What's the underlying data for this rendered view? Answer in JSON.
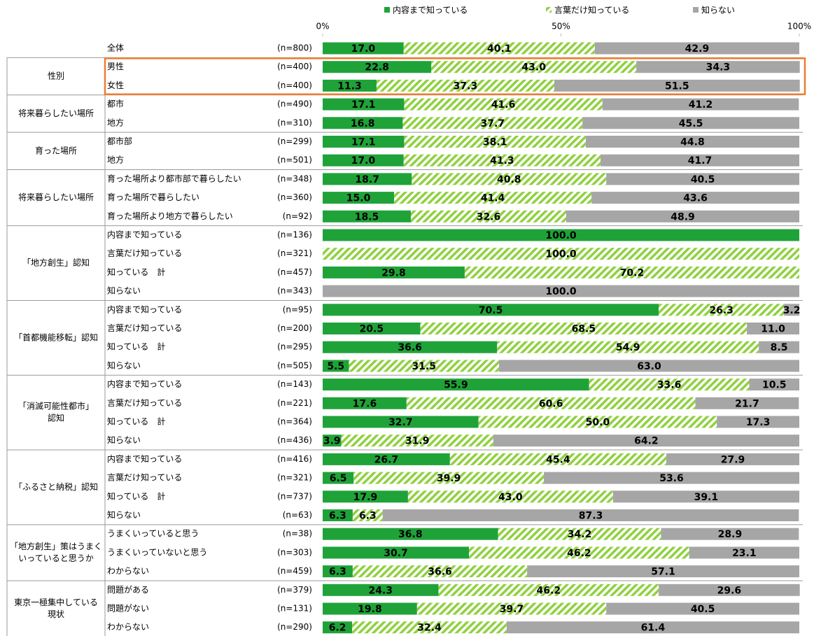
{
  "chart_data": {
    "type": "stacked-bar-horizontal",
    "legend_position": "top",
    "xlim": [
      0,
      100
    ],
    "xticks": [
      {
        "value": 0,
        "label": "0%"
      },
      {
        "value": 50,
        "label": "50%"
      },
      {
        "value": 100,
        "label": "100%"
      }
    ],
    "categories": [
      "全体",
      "男性",
      "女性",
      "都市",
      "地方",
      "都市部",
      "地方",
      "育った場所より都市部で暮らしたい",
      "育った場所で暮らしたい",
      "育った場所より地方で暮らしたい",
      "内容まで知っている",
      "言葉だけ知っている",
      "知っている　計",
      "知らない",
      "内容まで知っている",
      "言葉だけ知っている",
      "知っている　計",
      "知らない",
      "内容まで知っている",
      "言葉だけ知っている",
      "知っている　計",
      "知らない",
      "内容まで知っている",
      "言葉だけ知っている",
      "知っている　計",
      "知らない",
      "うまくいっていると思う",
      "うまくいっていないと思う",
      "わからない",
      "問題がある",
      "問題がない",
      "わからない"
    ],
    "n_labels": [
      "(n=800)",
      "(n=400)",
      "(n=400)",
      "(n=490)",
      "(n=310)",
      "(n=299)",
      "(n=501)",
      "(n=348)",
      "(n=360)",
      "(n=92)",
      "(n=136)",
      "(n=321)",
      "(n=457)",
      "(n=343)",
      "(n=95)",
      "(n=200)",
      "(n=295)",
      "(n=505)",
      "(n=143)",
      "(n=221)",
      "(n=364)",
      "(n=436)",
      "(n=416)",
      "(n=321)",
      "(n=737)",
      "(n=63)",
      "(n=38)",
      "(n=303)",
      "(n=459)",
      "(n=379)",
      "(n=131)",
      "(n=290)"
    ],
    "groups": [
      {
        "label": [
          "性別"
        ],
        "rows": [
          1,
          2
        ]
      },
      {
        "label": [
          "将来暮らしたい場所"
        ],
        "rows": [
          3,
          4
        ]
      },
      {
        "label": [
          "育った場所"
        ],
        "rows": [
          5,
          6
        ]
      },
      {
        "label": [
          "将来暮らしたい場所"
        ],
        "rows": [
          7,
          8,
          9
        ]
      },
      {
        "label": [
          "「地方創生」認知"
        ],
        "rows": [
          10,
          11,
          12,
          13
        ]
      },
      {
        "label": [
          "「首都機能移転」認知"
        ],
        "rows": [
          14,
          15,
          16,
          17
        ]
      },
      {
        "label": [
          "「消滅可能性都市」",
          "認知"
        ],
        "rows": [
          18,
          19,
          20,
          21
        ]
      },
      {
        "label": [
          "「ふるさと納税」認知"
        ],
        "rows": [
          22,
          23,
          24,
          25
        ]
      },
      {
        "label": [
          "「地方創生」策はうまく",
          "いっていると思うか"
        ],
        "rows": [
          26,
          27,
          28
        ]
      },
      {
        "label": [
          "東京一極集中している",
          "現状"
        ],
        "rows": [
          29,
          30,
          31
        ]
      }
    ],
    "highlight": {
      "group": 0,
      "color": "#ed7d31"
    },
    "series": [
      {
        "name": "内容まで知っている",
        "color": "#1fa339",
        "pattern": "solid",
        "values": [
          17.0,
          22.8,
          11.3,
          17.1,
          16.8,
          17.1,
          17.0,
          18.7,
          15.0,
          18.5,
          100.0,
          null,
          29.8,
          null,
          70.5,
          20.5,
          36.6,
          5.5,
          55.9,
          17.6,
          32.7,
          3.9,
          26.7,
          6.5,
          17.9,
          6.3,
          36.8,
          30.7,
          6.3,
          24.3,
          19.8,
          6.2
        ],
        "value_labels": [
          "17.0",
          "22.8",
          "11.3",
          "17.1",
          "16.8",
          "17.1",
          "17.0",
          "18.7",
          "15.0",
          "18.5",
          "100.0",
          null,
          "29.8",
          null,
          "70.5",
          "20.5",
          "36.6",
          "5.5",
          "55.9",
          "17.6",
          "32.7",
          "3.9",
          "26.7",
          "6.5",
          "17.9",
          "6.3",
          "36.8",
          "30.7",
          "6.3",
          "24.3",
          "19.8",
          "6.2"
        ]
      },
      {
        "name": "言葉だけ知っている",
        "color": "#8fd13f",
        "pattern": "hatch",
        "values": [
          40.1,
          43.0,
          37.3,
          41.6,
          37.7,
          38.1,
          41.3,
          40.8,
          41.4,
          32.6,
          null,
          100.0,
          70.2,
          null,
          26.3,
          68.5,
          54.9,
          31.5,
          33.6,
          60.6,
          50.0,
          31.9,
          45.4,
          39.9,
          43.0,
          6.3,
          34.2,
          46.2,
          36.6,
          46.2,
          39.7,
          32.4
        ],
        "value_labels": [
          "40.1",
          "43.0",
          "37.3",
          "41.6",
          "37.7",
          "38.1",
          "41.3",
          "40.8",
          "41.4",
          "32.6",
          null,
          "100.0",
          "70.2",
          null,
          "26.3",
          "68.5",
          "54.9",
          "31.5",
          "33.6",
          "60.6",
          "50.0",
          "31.9",
          "45.4",
          "39.9",
          "43.0",
          "6.3",
          "34.2",
          "46.2",
          "36.6",
          "46.2",
          "39.7",
          "32.4"
        ]
      },
      {
        "name": "知らない",
        "color": "#a6a6a6",
        "pattern": "solid",
        "values": [
          42.9,
          34.3,
          51.5,
          41.2,
          45.5,
          44.8,
          41.7,
          40.5,
          43.6,
          48.9,
          null,
          null,
          null,
          100.0,
          3.2,
          11.0,
          8.5,
          63.0,
          10.5,
          21.7,
          17.3,
          64.2,
          27.9,
          53.6,
          39.1,
          87.3,
          28.9,
          23.1,
          57.1,
          29.6,
          40.5,
          61.4
        ],
        "value_labels": [
          "42.9",
          "34.3",
          "51.5",
          "41.2",
          "45.5",
          "44.8",
          "41.7",
          "40.5",
          "43.6",
          "48.9",
          null,
          null,
          null,
          "100.0",
          "3.2",
          "11.0",
          "8.5",
          "63.0",
          "10.5",
          "21.7",
          "17.3",
          "64.2",
          "27.9",
          "53.6",
          "39.1",
          "87.3",
          "28.9",
          "23.1",
          "57.1",
          "29.6",
          "40.5",
          "61.4"
        ]
      }
    ]
  }
}
